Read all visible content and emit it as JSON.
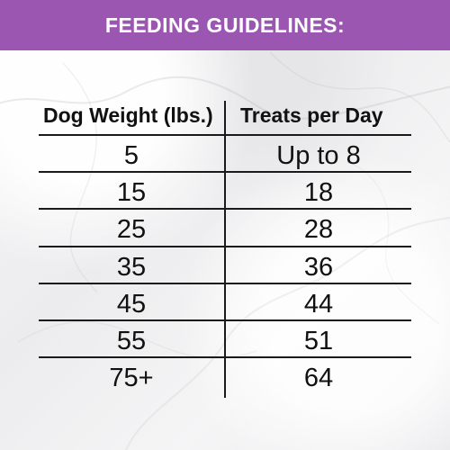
{
  "header": {
    "title": "FEEDING GUIDELINES:"
  },
  "table": {
    "columns": [
      "Dog Weight (lbs.)",
      "Treats per Day"
    ],
    "rows": [
      {
        "weight": "5",
        "treats": "Up to 8"
      },
      {
        "weight": "15",
        "treats": "18"
      },
      {
        "weight": "25",
        "treats": "28"
      },
      {
        "weight": "35",
        "treats": "36"
      },
      {
        "weight": "45",
        "treats": "44"
      },
      {
        "weight": "55",
        "treats": "51"
      },
      {
        "weight": "75+",
        "treats": "64"
      }
    ]
  },
  "colors": {
    "banner": "#9a56b1",
    "text": "#111111",
    "lines": "#1a1a1a"
  }
}
